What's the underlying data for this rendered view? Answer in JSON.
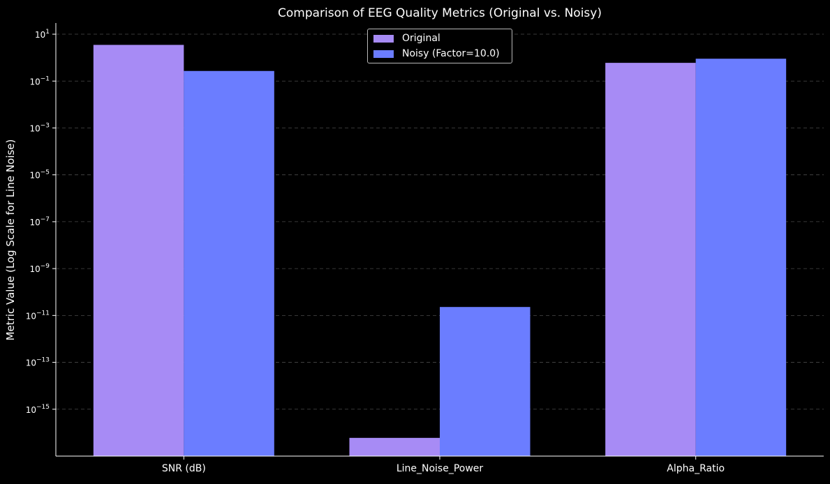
{
  "chart_data": {
    "type": "bar",
    "title": "Comparison of EEG Quality Metrics (Original vs. Noisy)",
    "xlabel": "",
    "ylabel": "Metric Value (Log Scale for Line Noise)",
    "yscale": "log",
    "ylim": [
      1e-17,
      30
    ],
    "yticks": [
      {
        "exp": "1",
        "value": 10
      },
      {
        "exp": "−1",
        "value": 0.1
      },
      {
        "exp": "−3",
        "value": 0.001
      },
      {
        "exp": "−5",
        "value": 1e-05
      },
      {
        "exp": "−7",
        "value": 1e-07
      },
      {
        "exp": "−9",
        "value": 1e-09
      },
      {
        "exp": "−11",
        "value": 1e-11
      },
      {
        "exp": "−13",
        "value": 1e-13
      },
      {
        "exp": "−15",
        "value": 1e-15
      }
    ],
    "tick_base": "10",
    "categories": [
      "SNR (dB)",
      "Line_Noise_Power",
      "Alpha_Ratio"
    ],
    "series": [
      {
        "name": "Original",
        "color": "#a78bf5",
        "values": [
          3.5,
          6e-17,
          0.6
        ]
      },
      {
        "name": "Noisy (Factor=10.0)",
        "color": "#6b7dff",
        "values": [
          0.27,
          2.3e-11,
          0.9
        ]
      }
    ],
    "grid": "y-dashed",
    "legend_position": "top-center"
  }
}
